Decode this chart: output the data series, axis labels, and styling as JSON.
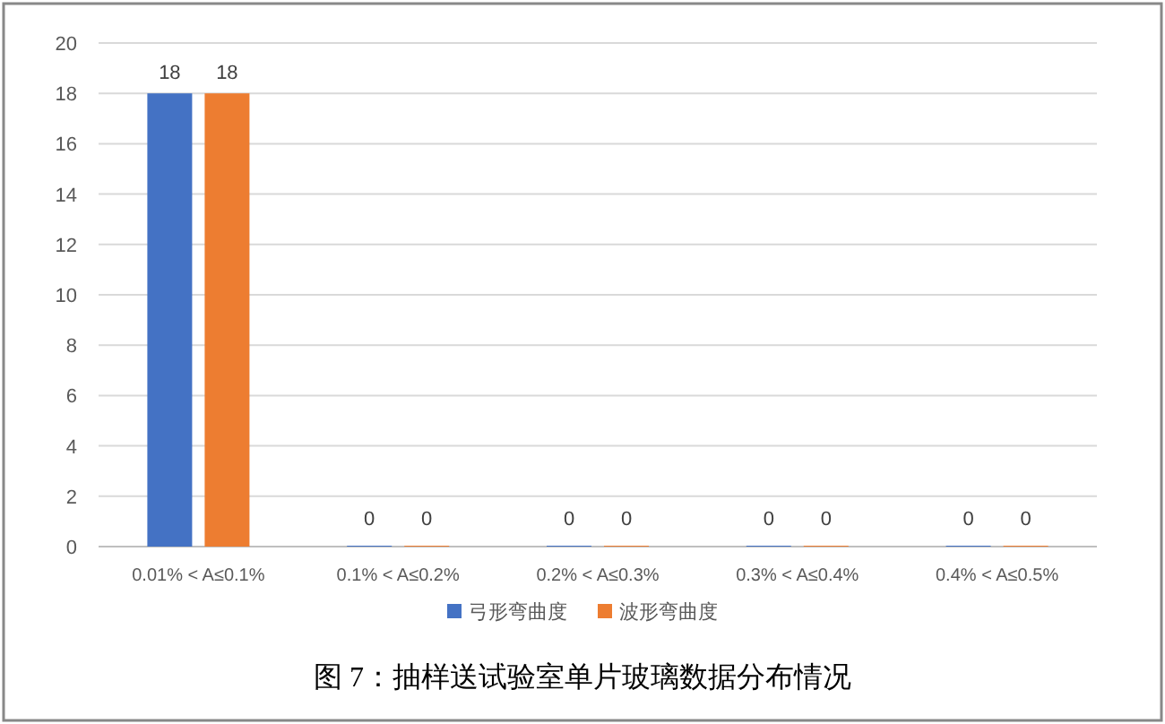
{
  "chart_data": {
    "type": "bar",
    "categories": [
      "0.01% < A≤0.1%",
      "0.1% < A≤0.2%",
      "0.2% < A≤0.3%",
      "0.3% < A≤0.4%",
      "0.4% < A≤0.5%"
    ],
    "series": [
      {
        "name": "弓形弯曲度",
        "color": "#4472c4",
        "values": [
          18,
          0,
          0,
          0,
          0
        ]
      },
      {
        "name": "波形弯曲度",
        "color": "#ed7d31",
        "values": [
          18,
          0,
          0,
          0,
          0
        ]
      }
    ],
    "ylim": [
      0,
      20
    ],
    "yticks": [
      0,
      2,
      4,
      6,
      8,
      10,
      12,
      14,
      16,
      18,
      20
    ],
    "grid": "y",
    "legend": "bottom",
    "data_labels": true,
    "annotations": [
      "图 7：抽样送试验室单片玻璃数据分布情况"
    ]
  }
}
